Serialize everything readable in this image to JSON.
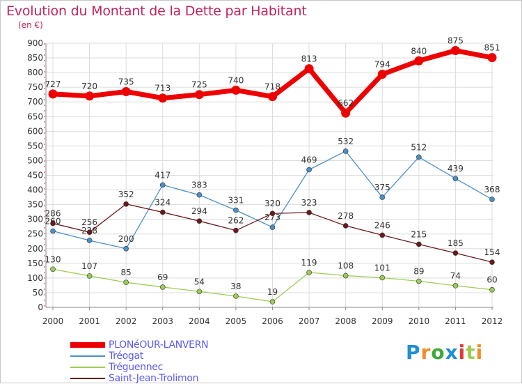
{
  "header": {
    "title": "Evolution du Montant de la Dette par Habitant",
    "subtitle": "(en €)"
  },
  "chart_data": {
    "type": "line",
    "title": "Evolution du Montant de la Dette par Habitant",
    "subtitle": "(en €)",
    "xlabel": "",
    "ylabel": "",
    "x": [
      "2000",
      "2001",
      "2002",
      "2003",
      "2004",
      "2005",
      "2006",
      "2007",
      "2008",
      "2009",
      "2010",
      "2011",
      "2012"
    ],
    "ylim": [
      0,
      900
    ],
    "yticks": [
      0,
      50,
      100,
      150,
      200,
      250,
      300,
      350,
      400,
      450,
      500,
      550,
      600,
      650,
      700,
      750,
      800,
      850,
      900
    ],
    "grid": true,
    "legend_position": "bottom-left",
    "series": [
      {
        "name": "PLONéOUR-LANVERN",
        "color": "#ee0000",
        "values": [
          727,
          720,
          735,
          713,
          725,
          740,
          718,
          813,
          662,
          794,
          840,
          875,
          851
        ]
      },
      {
        "name": "Tréogat",
        "color": "#4a90c8",
        "values": [
          260,
          228,
          200,
          417,
          383,
          331,
          273,
          469,
          532,
          375,
          512,
          439,
          368
        ]
      },
      {
        "name": "Tréguennec",
        "color": "#9ccc55",
        "values": [
          130,
          107,
          85,
          69,
          54,
          38,
          19,
          119,
          108,
          101,
          89,
          74,
          60
        ]
      },
      {
        "name": "Saint-Jean-Trolimon",
        "color": "#6b1a1a",
        "values": [
          286,
          256,
          352,
          324,
          294,
          262,
          320,
          323,
          278,
          246,
          215,
          185,
          154
        ]
      }
    ]
  },
  "legend": {
    "items": [
      {
        "label": "PLONéOUR-LANVERN"
      },
      {
        "label": "Tréogat"
      },
      {
        "label": "Tréguennec"
      },
      {
        "label": "Saint-Jean-Trolimon"
      }
    ]
  },
  "logo": {
    "text": "Proxiti",
    "letters": [
      "P",
      "r",
      "o",
      "x",
      "i",
      "t",
      "i"
    ],
    "letter_colors": [
      "#1f8fd6",
      "#f28c28",
      "#3fa83a",
      "#1f8fd6",
      "#e53935",
      "#9ccc55",
      "#f28c28"
    ]
  }
}
